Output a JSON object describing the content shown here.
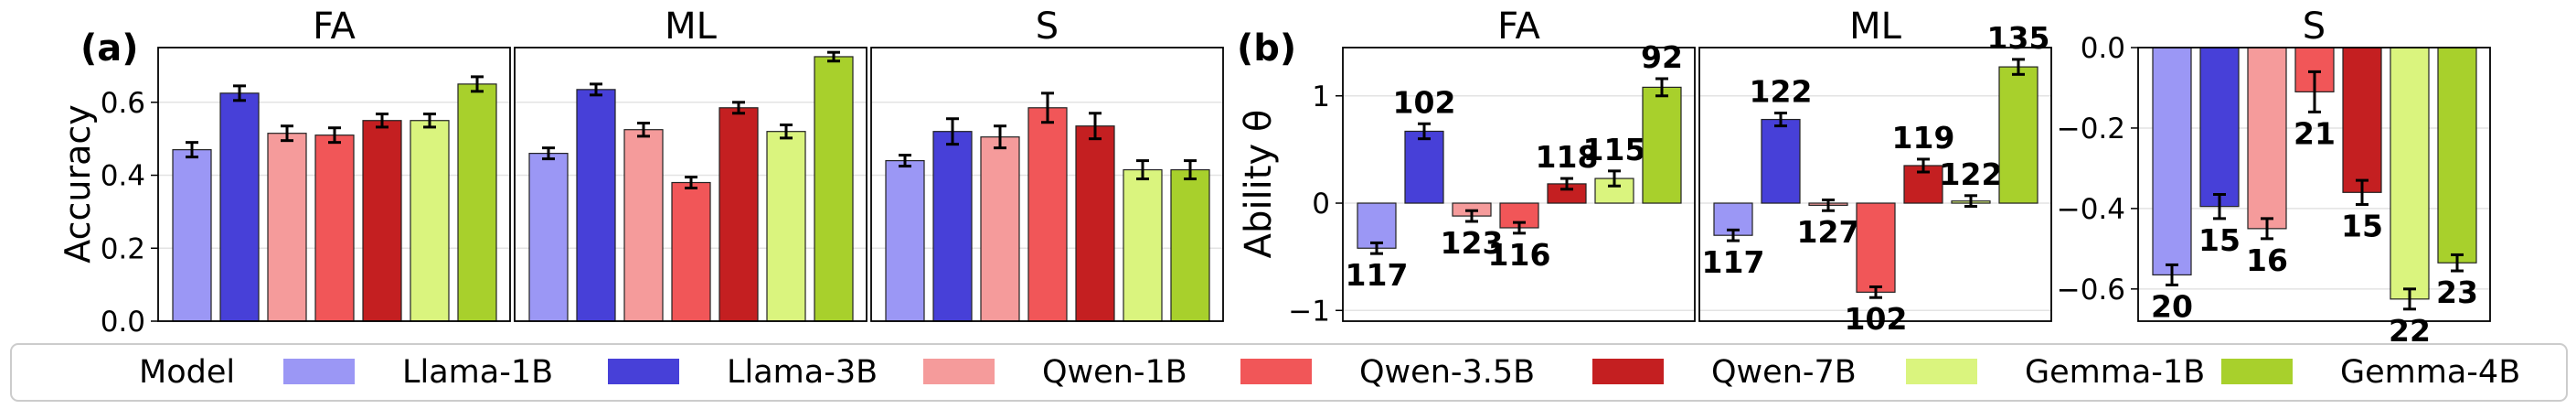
{
  "chart_data": {
    "type": "bar",
    "series_style": [
      {
        "name": "Llama-1B",
        "color": "#9b97f5"
      },
      {
        "name": "Llama-3B",
        "color": "#4740d8"
      },
      {
        "name": "Qwen-1B",
        "color": "#f59b9b"
      },
      {
        "name": "Qwen-3.5B",
        "color": "#f15658"
      },
      {
        "name": "Qwen-7B",
        "color": "#c41f21"
      },
      {
        "name": "Gemma-1B",
        "color": "#daf47e"
      },
      {
        "name": "Gemma-4B",
        "color": "#a8d02c"
      }
    ],
    "legend": {
      "title": "Model",
      "entries": [
        "Llama-1B",
        "Llama-3B",
        "Qwen-1B",
        "Qwen-3.5B",
        "Qwen-7B",
        "Gemma-1B",
        "Gemma-4B"
      ],
      "placement": "bottom"
    },
    "panels": [
      {
        "label": "(a)",
        "ylabel": "Accuracy",
        "ylim": [
          0,
          0.75
        ],
        "yticks": [
          "0.0",
          "0.2",
          "0.4",
          "0.6"
        ],
        "ytick_values": [
          0,
          0.2,
          0.4,
          0.6
        ],
        "subplots": [
          {
            "title": "FA",
            "values": [
              0.47,
              0.625,
              0.515,
              0.51,
              0.55,
              0.55,
              0.65
            ],
            "errors": [
              0.02,
              0.02,
              0.02,
              0.02,
              0.018,
              0.018,
              0.02
            ]
          },
          {
            "title": "ML",
            "values": [
              0.46,
              0.635,
              0.525,
              0.38,
              0.585,
              0.52,
              0.725
            ],
            "errors": [
              0.015,
              0.015,
              0.018,
              0.015,
              0.015,
              0.018,
              0.012
            ]
          },
          {
            "title": "S",
            "values": [
              0.44,
              0.52,
              0.505,
              0.585,
              0.535,
              0.415,
              0.415
            ],
            "errors": [
              0.015,
              0.035,
              0.03,
              0.04,
              0.035,
              0.025,
              0.025
            ]
          }
        ]
      },
      {
        "label": "(b)",
        "ylabel": "Ability θ",
        "subplots": [
          {
            "title": "FA",
            "ylim": [
              -1.1,
              1.45
            ],
            "yticks": [
              "−1",
              "0",
              "1"
            ],
            "ytick_values": [
              -1,
              0,
              1
            ],
            "values": [
              -0.42,
              0.67,
              -0.12,
              -0.23,
              0.18,
              0.23,
              1.08
            ],
            "errors": [
              0.05,
              0.07,
              0.05,
              0.05,
              0.05,
              0.07,
              0.08
            ],
            "annotations": [
              "117",
              "102",
              "123",
              "116",
              "118",
              "115",
              "92"
            ]
          },
          {
            "title": "ML",
            "ylim": [
              -1.1,
              1.45
            ],
            "values": [
              -0.3,
              0.78,
              -0.02,
              -0.83,
              0.35,
              0.02,
              1.27
            ],
            "errors": [
              0.05,
              0.06,
              0.05,
              0.05,
              0.06,
              0.05,
              0.07
            ],
            "annotations": [
              "117",
              "122",
              "127",
              "102",
              "119",
              "122",
              "135"
            ]
          },
          {
            "title": "S",
            "ylim": [
              -0.68,
              0.0
            ],
            "yticks": [
              "0.0",
              "−0.2",
              "−0.4",
              "−0.6"
            ],
            "ytick_values": [
              0,
              -0.2,
              -0.4,
              -0.6
            ],
            "values": [
              -0.565,
              -0.395,
              -0.45,
              -0.11,
              -0.36,
              -0.625,
              -0.535
            ],
            "errors": [
              0.025,
              0.03,
              0.025,
              0.05,
              0.03,
              0.025,
              0.02
            ],
            "annotations": [
              "20",
              "15",
              "16",
              "21",
              "15",
              "22",
              "23"
            ]
          }
        ]
      }
    ]
  }
}
